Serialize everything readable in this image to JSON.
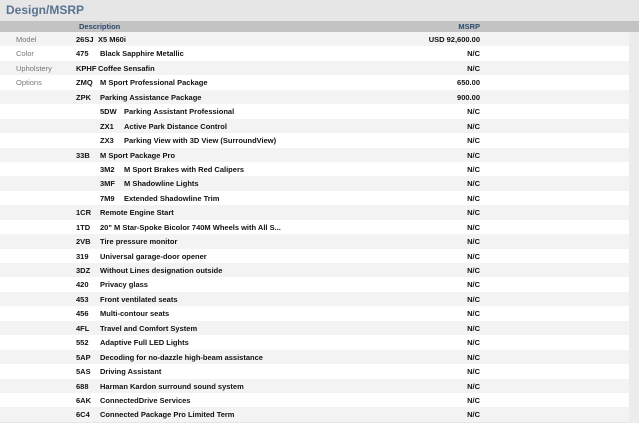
{
  "title": "Design/MSRP",
  "header": {
    "description": "Description",
    "msrp": "MSRP"
  },
  "rows": [
    {
      "label": "Model",
      "code": "26SJ",
      "desc": "X5 M60i",
      "price": "USD 92,600.00",
      "level": 0
    },
    {
      "label": "Color",
      "code": "475",
      "desc": "Black Sapphire Metallic",
      "price": "N/C",
      "level": 0
    },
    {
      "label": "Upholstery",
      "code": "KPHF",
      "desc": "Coffee Sensafin",
      "price": "N/C",
      "level": 0
    },
    {
      "label": "Options",
      "code": "ZMQ",
      "desc": "M Sport Professional Package",
      "price": "650.00",
      "level": 0
    },
    {
      "label": "",
      "code": "ZPK",
      "desc": "Parking Assistance Package",
      "price": "900.00",
      "level": 0
    },
    {
      "label": "",
      "code": "5DW",
      "desc": "Parking Assistant Professional",
      "price": "N/C",
      "level": 1
    },
    {
      "label": "",
      "code": "ZX1",
      "desc": "Active Park Distance Control",
      "price": "N/C",
      "level": 1
    },
    {
      "label": "",
      "code": "ZX3",
      "desc": "Parking View with 3D View (SurroundView)",
      "price": "N/C",
      "level": 1
    },
    {
      "label": "",
      "code": "33B",
      "desc": "M Sport Package Pro",
      "price": "N/C",
      "level": 0
    },
    {
      "label": "",
      "code": "3M2",
      "desc": "M Sport Brakes with Red Calipers",
      "price": "N/C",
      "level": 1
    },
    {
      "label": "",
      "code": "3MF",
      "desc": "M Shadowline Lights",
      "price": "N/C",
      "level": 1
    },
    {
      "label": "",
      "code": "7M9",
      "desc": "Extended Shadowline Trim",
      "price": "N/C",
      "level": 1
    },
    {
      "label": "",
      "code": "1CR",
      "desc": "Remote Engine Start",
      "price": "N/C",
      "level": 0
    },
    {
      "label": "",
      "code": "1TD",
      "desc": "20\" M Star-Spoke Bicolor 740M Wheels with All S...",
      "price": "N/C",
      "level": 0
    },
    {
      "label": "",
      "code": "2VB",
      "desc": "Tire pressure monitor",
      "price": "N/C",
      "level": 0
    },
    {
      "label": "",
      "code": "319",
      "desc": "Universal garage-door opener",
      "price": "N/C",
      "level": 0
    },
    {
      "label": "",
      "code": "3DZ",
      "desc": "Without Lines designation outside",
      "price": "N/C",
      "level": 0
    },
    {
      "label": "",
      "code": "420",
      "desc": "Privacy glass",
      "price": "N/C",
      "level": 0
    },
    {
      "label": "",
      "code": "453",
      "desc": "Front ventilated seats",
      "price": "N/C",
      "level": 0
    },
    {
      "label": "",
      "code": "456",
      "desc": "Multi-contour seats",
      "price": "N/C",
      "level": 0
    },
    {
      "label": "",
      "code": "4FL",
      "desc": "Travel and Comfort System",
      "price": "N/C",
      "level": 0
    },
    {
      "label": "",
      "code": "552",
      "desc": "Adaptive Full LED Lights",
      "price": "N/C",
      "level": 0
    },
    {
      "label": "",
      "code": "5AP",
      "desc": "Decoding for no-dazzle high-beam assistance",
      "price": "N/C",
      "level": 0
    },
    {
      "label": "",
      "code": "5AS",
      "desc": "Driving Assistant",
      "price": "N/C",
      "level": 0
    },
    {
      "label": "",
      "code": "688",
      "desc": "Harman Kardon surround sound system",
      "price": "N/C",
      "level": 0
    },
    {
      "label": "",
      "code": "6AK",
      "desc": "ConnectedDrive Services",
      "price": "N/C",
      "level": 0
    },
    {
      "label": "",
      "code": "6C4",
      "desc": "Connected Package Pro Limited Term",
      "price": "N/C",
      "level": 0
    }
  ]
}
